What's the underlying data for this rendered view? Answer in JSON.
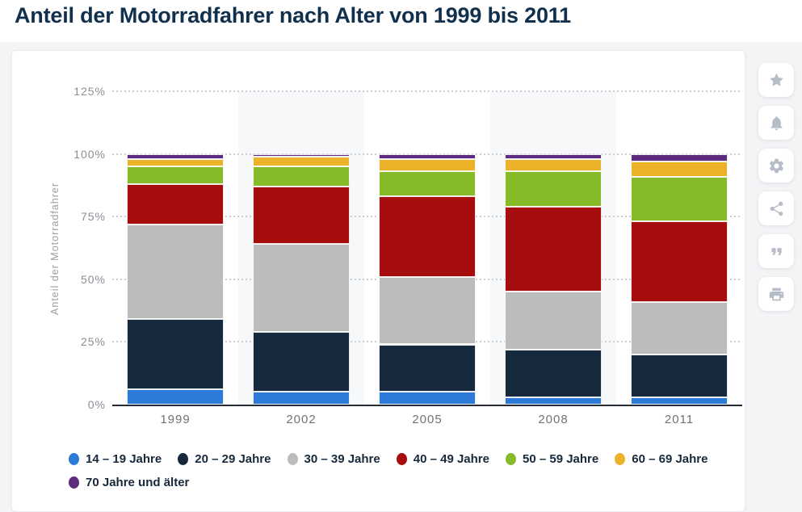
{
  "page_title": "Anteil der Motorradfahrer nach Alter von 1999 bis 2011",
  "chart_data": {
    "type": "bar",
    "stacked": true,
    "title": "Anteil der Motorradfahrer nach Alter von 1999 bis 2011",
    "categories": [
      "1999",
      "2002",
      "2005",
      "2008",
      "2011"
    ],
    "series": [
      {
        "name": "14 – 19 Jahre",
        "color": "#2d7ad9",
        "values": [
          6,
          5,
          5,
          3,
          3
        ]
      },
      {
        "name": "20 – 29 Jahre",
        "color": "#16293d",
        "values": [
          28,
          24,
          19,
          19,
          17
        ]
      },
      {
        "name": "30 – 39 Jahre",
        "color": "#bcbcbc",
        "values": [
          38,
          35,
          27,
          23,
          21
        ]
      },
      {
        "name": "40 – 49 Jahre",
        "color": "#a60d0f",
        "values": [
          16,
          23,
          32,
          34,
          32
        ]
      },
      {
        "name": "50 – 59 Jahre",
        "color": "#86ba28",
        "values": [
          7,
          8,
          10,
          14,
          18
        ]
      },
      {
        "name": "60 – 69 Jahre",
        "color": "#ecb32a",
        "values": [
          3,
          4,
          5,
          5,
          6
        ]
      },
      {
        "name": "70 Jahre und älter",
        "color": "#5c2b80",
        "values": [
          2,
          1,
          2,
          2,
          3
        ]
      }
    ],
    "xlabel": "",
    "ylabel": "Anteil der Motorradfahrer",
    "yticks": [
      "0%",
      "25%",
      "50%",
      "75%",
      "100%",
      "125%"
    ],
    "ylim": [
      0,
      125
    ],
    "unit": "%",
    "grid": "dotted-horizontal",
    "legend_position": "bottom"
  },
  "sidebar": {
    "buttons": [
      {
        "name": "favorite",
        "icon": "star-icon"
      },
      {
        "name": "alerts",
        "icon": "bell-icon"
      },
      {
        "name": "settings",
        "icon": "gear-icon"
      },
      {
        "name": "share",
        "icon": "share-icon"
      },
      {
        "name": "cite",
        "icon": "quote-icon"
      },
      {
        "name": "print",
        "icon": "print-icon"
      }
    ]
  }
}
